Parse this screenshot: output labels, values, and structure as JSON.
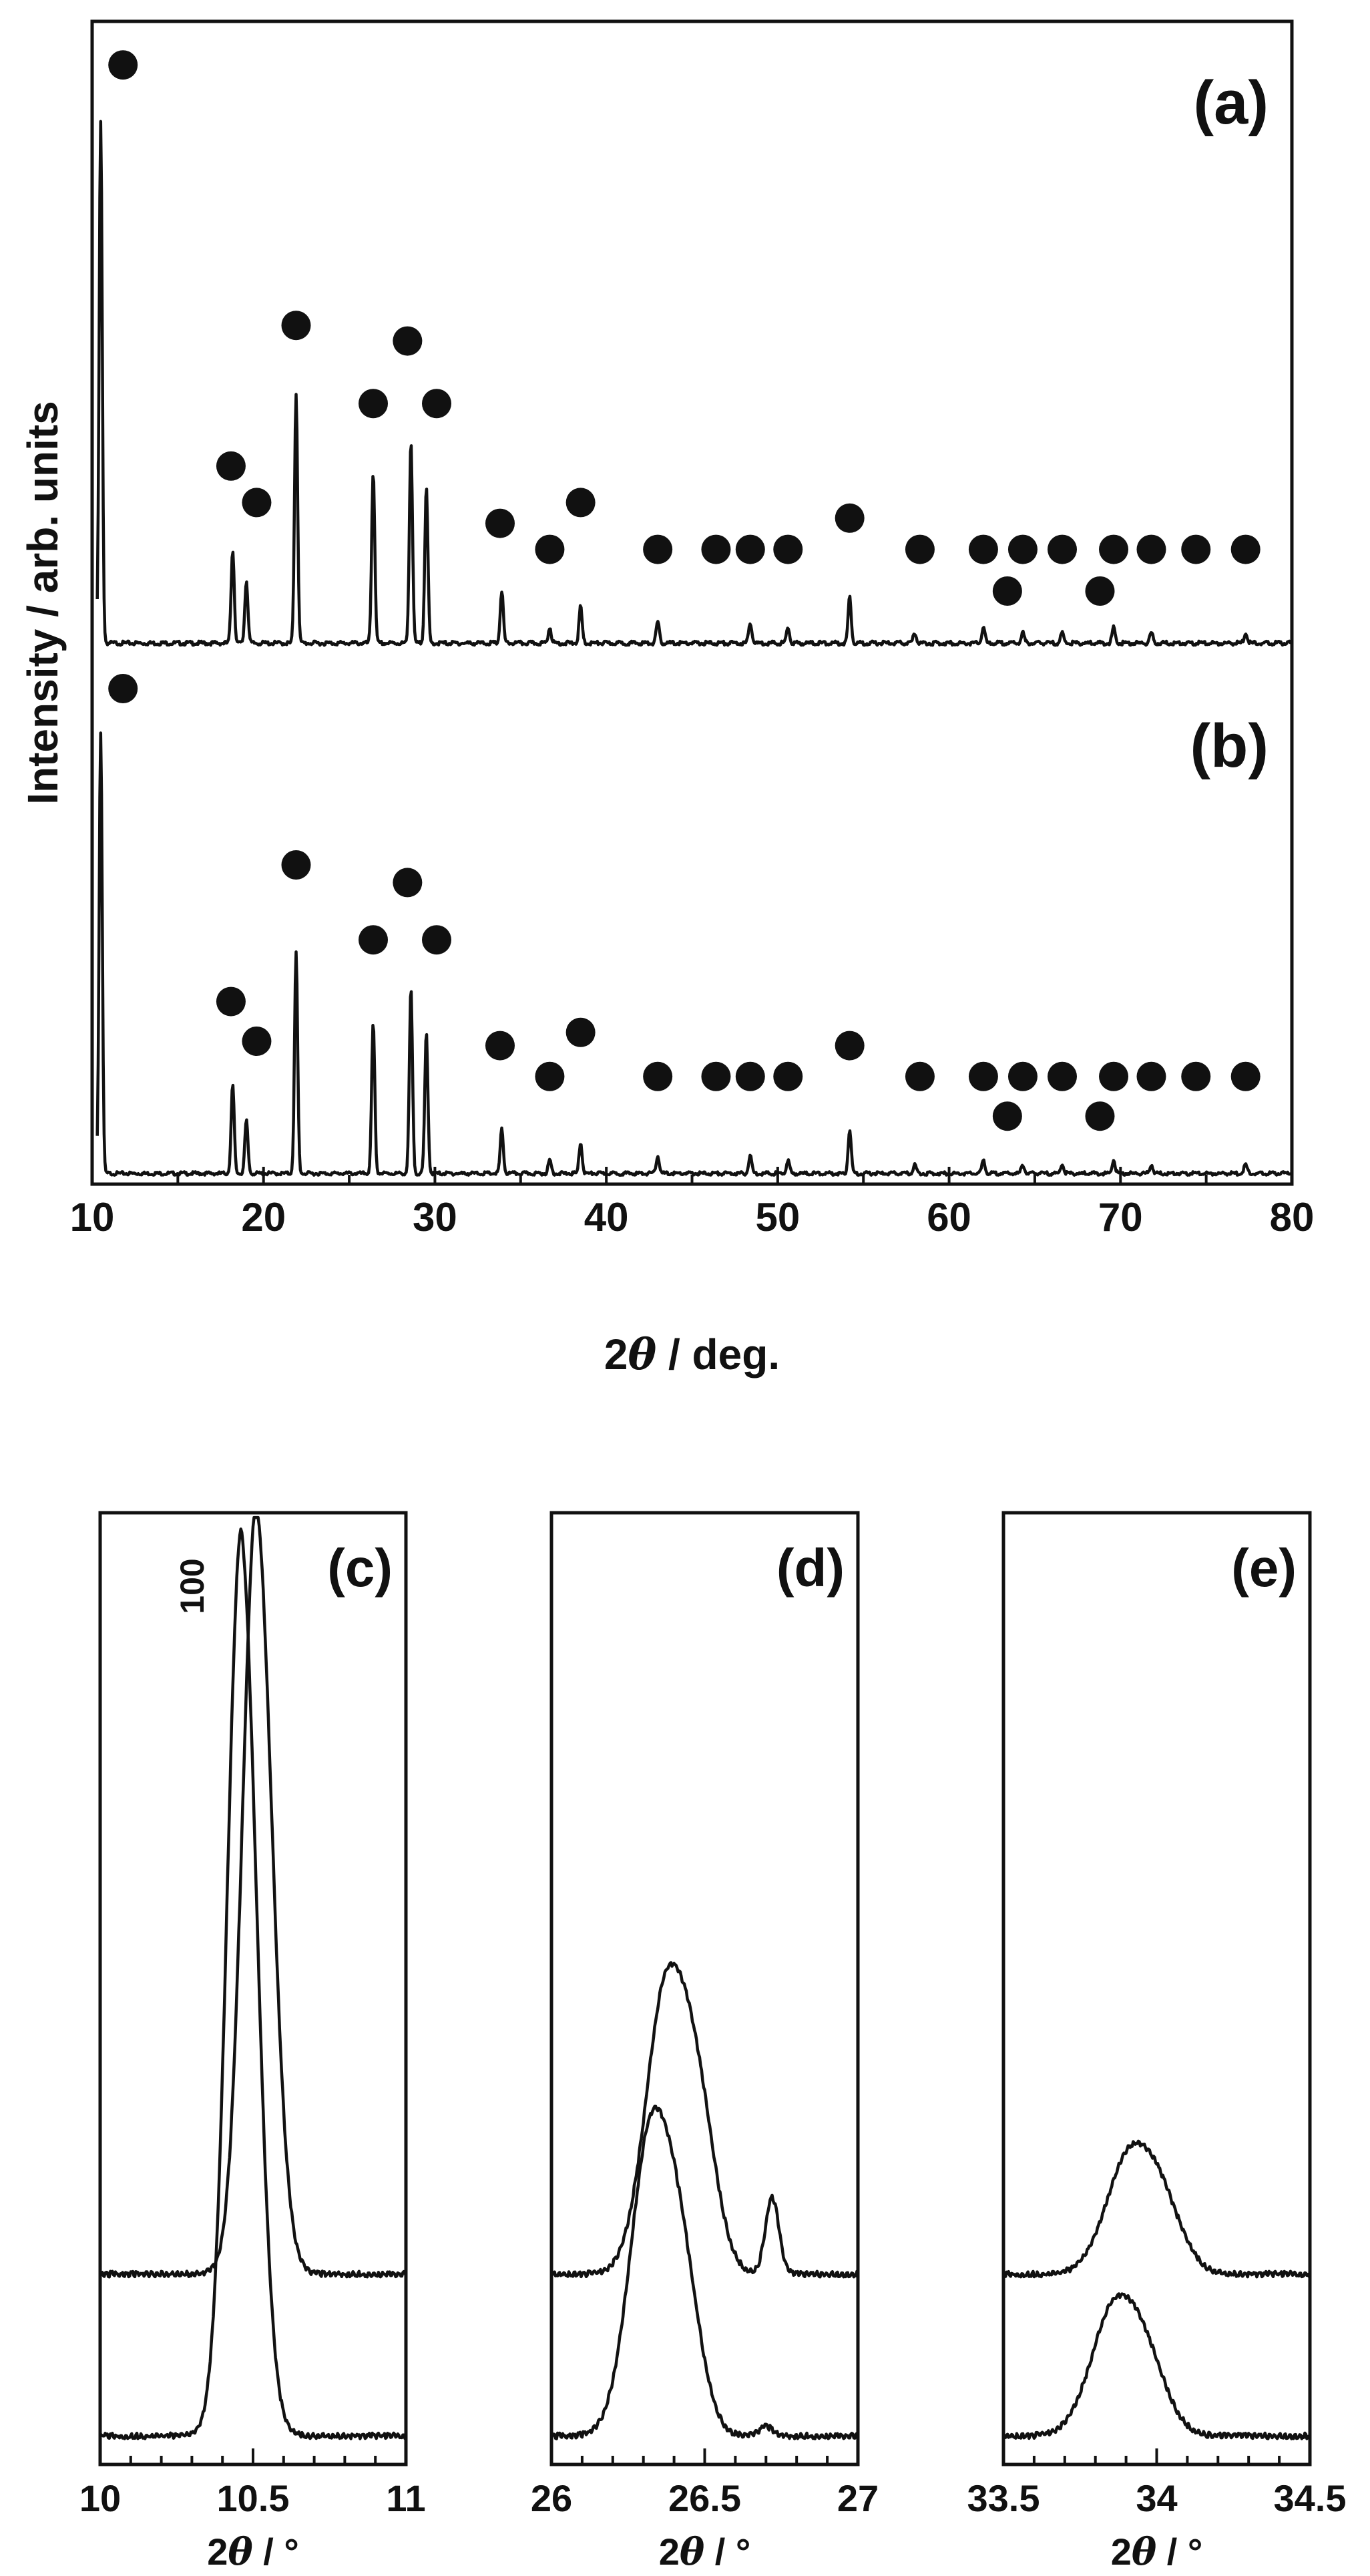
{
  "chart_data": [
    {
      "type": "line",
      "panels": [
        "(a)",
        "(b)"
      ],
      "xlabel_prefix": "2",
      "xlabel_symbol": "θ",
      "xlabel_suffix": " / deg.",
      "ylabel": "Intensity / arb. units",
      "xlim": [
        10,
        80
      ],
      "xticks": [
        10,
        20,
        30,
        40,
        50,
        60,
        70,
        80
      ],
      "peaks": [
        10.5,
        18.2,
        19.0,
        21.9,
        26.4,
        28.6,
        29.5,
        33.9,
        36.7,
        38.5,
        43.0,
        48.4,
        50.6,
        54.2,
        58.0,
        62.0,
        64.3,
        66.6,
        69.6,
        71.8,
        77.3
      ],
      "series": [
        {
          "panel": "(a)",
          "peak_heights": [
            1.0,
            0.18,
            0.12,
            0.48,
            0.33,
            0.39,
            0.3,
            0.1,
            0.03,
            0.07,
            0.04,
            0.04,
            0.03,
            0.09,
            0.02,
            0.03,
            0.02,
            0.02,
            0.03,
            0.02,
            0.02
          ],
          "markers": [
            {
              "x": 11.8,
              "level": 1.11
            },
            {
              "x": 18.1,
              "level": 0.34
            },
            {
              "x": 19.6,
              "level": 0.27
            },
            {
              "x": 21.9,
              "level": 0.61
            },
            {
              "x": 26.4,
              "level": 0.46
            },
            {
              "x": 28.4,
              "level": 0.58
            },
            {
              "x": 30.1,
              "level": 0.46
            },
            {
              "x": 33.8,
              "level": 0.23
            },
            {
              "x": 36.7,
              "level": 0.18
            },
            {
              "x": 38.5,
              "level": 0.27
            },
            {
              "x": 43.0,
              "level": 0.18
            },
            {
              "x": 46.4,
              "level": 0.18
            },
            {
              "x": 48.4,
              "level": 0.18
            },
            {
              "x": 50.6,
              "level": 0.18
            },
            {
              "x": 54.2,
              "level": 0.24
            },
            {
              "x": 58.3,
              "level": 0.18
            },
            {
              "x": 62.0,
              "level": 0.18
            },
            {
              "x": 63.4,
              "level": 0.1
            },
            {
              "x": 64.3,
              "level": 0.18
            },
            {
              "x": 66.6,
              "level": 0.18
            },
            {
              "x": 68.8,
              "level": 0.1
            },
            {
              "x": 69.6,
              "level": 0.18
            },
            {
              "x": 71.8,
              "level": 0.18
            },
            {
              "x": 74.4,
              "level": 0.18
            },
            {
              "x": 77.3,
              "level": 0.18
            }
          ]
        },
        {
          "panel": "(b)",
          "peak_heights": [
            1.0,
            0.2,
            0.12,
            0.5,
            0.34,
            0.42,
            0.32,
            0.1,
            0.03,
            0.07,
            0.04,
            0.04,
            0.03,
            0.1,
            0.02,
            0.03,
            0.02,
            0.02,
            0.03,
            0.02,
            0.02
          ],
          "markers": [
            {
              "x": 11.8,
              "level": 1.1
            },
            {
              "x": 18.1,
              "level": 0.39
            },
            {
              "x": 19.6,
              "level": 0.3
            },
            {
              "x": 21.9,
              "level": 0.7
            },
            {
              "x": 26.4,
              "level": 0.53
            },
            {
              "x": 28.4,
              "level": 0.66
            },
            {
              "x": 30.1,
              "level": 0.53
            },
            {
              "x": 33.8,
              "level": 0.29
            },
            {
              "x": 36.7,
              "level": 0.22
            },
            {
              "x": 38.5,
              "level": 0.32
            },
            {
              "x": 43.0,
              "level": 0.22
            },
            {
              "x": 46.4,
              "level": 0.22
            },
            {
              "x": 48.4,
              "level": 0.22
            },
            {
              "x": 50.6,
              "level": 0.22
            },
            {
              "x": 54.2,
              "level": 0.29
            },
            {
              "x": 58.3,
              "level": 0.22
            },
            {
              "x": 62.0,
              "level": 0.22
            },
            {
              "x": 63.4,
              "level": 0.13
            },
            {
              "x": 64.3,
              "level": 0.22
            },
            {
              "x": 66.6,
              "level": 0.22
            },
            {
              "x": 68.8,
              "level": 0.13
            },
            {
              "x": 69.6,
              "level": 0.22
            },
            {
              "x": 71.8,
              "level": 0.22
            },
            {
              "x": 74.4,
              "level": 0.22
            },
            {
              "x": 77.3,
              "level": 0.22
            }
          ]
        }
      ]
    },
    {
      "type": "line",
      "panel": "(c)",
      "xlim": [
        10,
        11
      ],
      "xticks": [
        10,
        10.5,
        11
      ],
      "xtick_labels": [
        "10",
        "10.5",
        "11"
      ],
      "xlabel_prefix": "2",
      "xlabel_symbol": "θ",
      "xlabel_suffix": " / °",
      "annotation": "100",
      "series": [
        {
          "name": "",
          "baseline": 0.2,
          "center": 10.51,
          "width": 0.045,
          "height": 0.76,
          "tail": 0.09
        },
        {
          "name": "",
          "baseline": 0.03,
          "center": 10.46,
          "width": 0.045,
          "height": 0.9,
          "tail": 0.09
        }
      ]
    },
    {
      "type": "line",
      "panel": "(d)",
      "xlim": [
        26,
        27
      ],
      "xticks": [
        26,
        26.5,
        27
      ],
      "xtick_labels": [
        "26",
        "26.5",
        "27"
      ],
      "xlabel_prefix": "2",
      "xlabel_symbol": "θ",
      "xlabel_suffix": " / °",
      "series": [
        {
          "name": "",
          "baseline": 0.2,
          "center": 26.38,
          "width": 0.07,
          "height": 0.31,
          "shoulder": 0.09,
          "second_center": 26.72,
          "second_height": 0.08
        },
        {
          "name": "",
          "baseline": 0.03,
          "center": 26.33,
          "width": 0.07,
          "height": 0.33,
          "shoulder": 0.08,
          "second_center": 26.7,
          "second_height": 0.01
        }
      ]
    },
    {
      "type": "line",
      "panel": "(e)",
      "xlim": [
        33.5,
        34.5
      ],
      "xticks": [
        33.5,
        34,
        34.5
      ],
      "xtick_labels": [
        "33.5",
        "34",
        "34.5"
      ],
      "xlabel_prefix": "2",
      "xlabel_symbol": "θ",
      "xlabel_suffix": " / °",
      "series": [
        {
          "name": "",
          "baseline": 0.2,
          "center": 33.92,
          "width": 0.08,
          "height": 0.13,
          "shoulder": 0.03
        },
        {
          "name": "",
          "baseline": 0.03,
          "center": 33.87,
          "width": 0.08,
          "height": 0.14,
          "shoulder": 0.03
        }
      ]
    }
  ]
}
